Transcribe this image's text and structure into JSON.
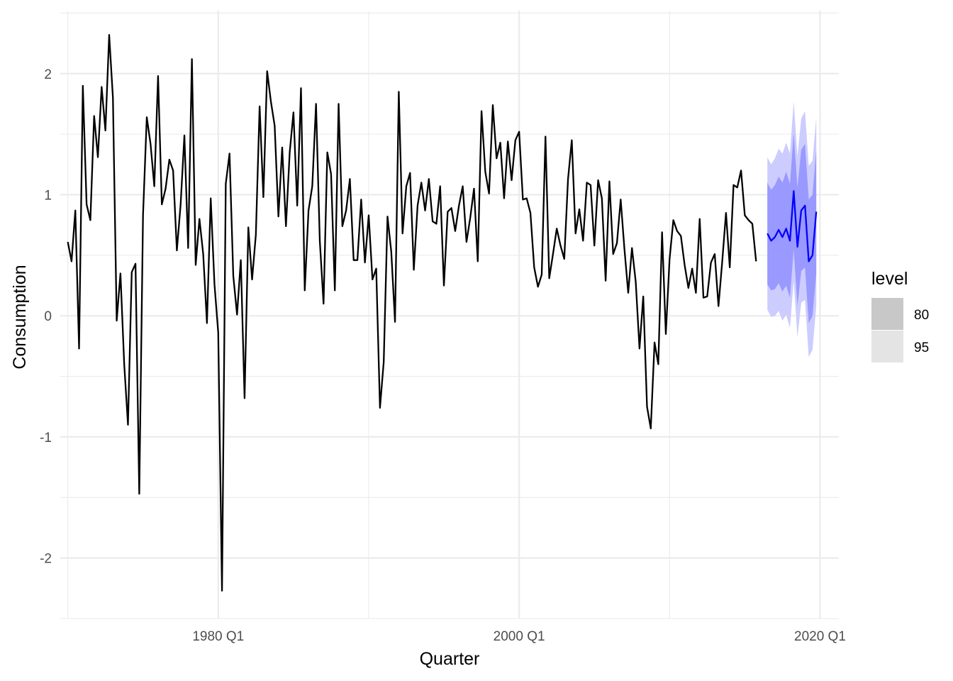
{
  "chart_data": {
    "type": "line",
    "xlabel": "Quarter",
    "ylabel": "Consumption",
    "x_ticks": [
      "1980 Q1",
      "2000 Q1",
      "2020 Q1"
    ],
    "y_ticks": [
      "-2",
      "-1",
      "0",
      "1",
      "2"
    ],
    "xlim": [
      1969.5,
      2021.25
    ],
    "ylim": [
      -2.5,
      2.52
    ],
    "grid": true,
    "legend_title": "level",
    "legend_position": "right",
    "legend_entries": [
      {
        "label": "80",
        "color": "#c8c8c8"
      },
      {
        "label": "95",
        "color": "#e4e4e4"
      }
    ],
    "colors": {
      "history": "#000000",
      "forecast": "#0000ff",
      "band80": "#9999ff",
      "band95": "#ccccff",
      "grid": "#ebebeb"
    },
    "history": {
      "start": "1970 Q1",
      "step_quarters": 1,
      "values": [
        0.61,
        0.45,
        0.87,
        -0.27,
        1.9,
        0.92,
        0.79,
        1.65,
        1.31,
        1.89,
        1.53,
        2.32,
        1.8,
        -0.04,
        0.35,
        -0.4,
        -0.9,
        0.36,
        0.43,
        -1.47,
        0.83,
        1.64,
        1.42,
        1.07,
        1.98,
        0.92,
        1.05,
        1.29,
        1.2,
        0.54,
        0.92,
        1.49,
        0.56,
        2.12,
        0.42,
        0.8,
        0.51,
        -0.06,
        0.97,
        0.26,
        -0.14,
        -2.27,
        1.09,
        1.34,
        0.33,
        0.01,
        0.46,
        -0.68,
        0.73,
        0.3,
        0.67,
        1.73,
        0.98,
        2.02,
        1.77,
        1.57,
        0.82,
        1.39,
        0.74,
        1.35,
        1.68,
        0.91,
        1.88,
        0.21,
        0.87,
        1.07,
        1.75,
        0.62,
        0.1,
        1.35,
        1.17,
        0.21,
        1.75,
        0.74,
        0.87,
        1.13,
        0.46,
        0.46,
        0.96,
        0.44,
        0.83,
        0.3,
        0.39,
        -0.76,
        -0.38,
        0.82,
        0.53,
        -0.05,
        1.85,
        0.68,
        1.07,
        1.18,
        0.38,
        0.91,
        1.1,
        0.87,
        1.13,
        0.78,
        0.76,
        1.07,
        0.25,
        0.86,
        0.89,
        0.7,
        0.91,
        1.07,
        0.61,
        0.81,
        1.05,
        0.45,
        1.69,
        1.19,
        1.01,
        1.74,
        1.3,
        1.43,
        0.97,
        1.44,
        1.12,
        1.45,
        1.52,
        0.96,
        0.97,
        0.85,
        0.4,
        0.24,
        0.34,
        1.48,
        0.31,
        0.51,
        0.72,
        0.58,
        0.47,
        1.13,
        1.45,
        0.68,
        0.88,
        0.62,
        1.1,
        1.08,
        0.58,
        1.12,
        0.97,
        0.29,
        1.11,
        0.51,
        0.6,
        0.96,
        0.55,
        0.19,
        0.56,
        0.28,
        -0.27,
        0.16,
        -0.75,
        -0.93,
        -0.22,
        -0.4,
        0.69,
        -0.15,
        0.47,
        0.79,
        0.7,
        0.66,
        0.42,
        0.23,
        0.39,
        0.19,
        0.8,
        0.15,
        0.16,
        0.44,
        0.51,
        0.08,
        0.45,
        0.85,
        0.4,
        1.08,
        1.06,
        1.2,
        0.83,
        0.79,
        0.76,
        0.45
      ]
    },
    "forecast": {
      "start": "2016 Q3",
      "step_quarters": 1,
      "values": [
        0.68,
        0.62,
        0.65,
        0.71,
        0.65,
        0.72,
        0.62,
        1.03,
        0.57,
        0.87,
        0.91,
        0.45,
        0.5,
        0.86
      ],
      "lower80": [
        0.26,
        0.21,
        0.22,
        0.27,
        0.2,
        0.25,
        0.15,
        0.55,
        0.08,
        0.37,
        0.4,
        -0.06,
        0.0,
        0.35
      ],
      "upper80": [
        1.1,
        1.04,
        1.08,
        1.15,
        1.1,
        1.19,
        1.09,
        1.51,
        1.06,
        1.37,
        1.42,
        0.96,
        1.0,
        1.37
      ],
      "lower95": [
        0.05,
        -0.01,
        0.0,
        0.04,
        -0.04,
        0.01,
        -0.1,
        0.29,
        -0.18,
        0.11,
        0.13,
        -0.34,
        -0.28,
        0.08
      ],
      "upper95": [
        1.31,
        1.25,
        1.3,
        1.38,
        1.34,
        1.43,
        1.34,
        1.77,
        1.32,
        1.63,
        1.69,
        1.24,
        1.28,
        1.64
      ]
    }
  }
}
